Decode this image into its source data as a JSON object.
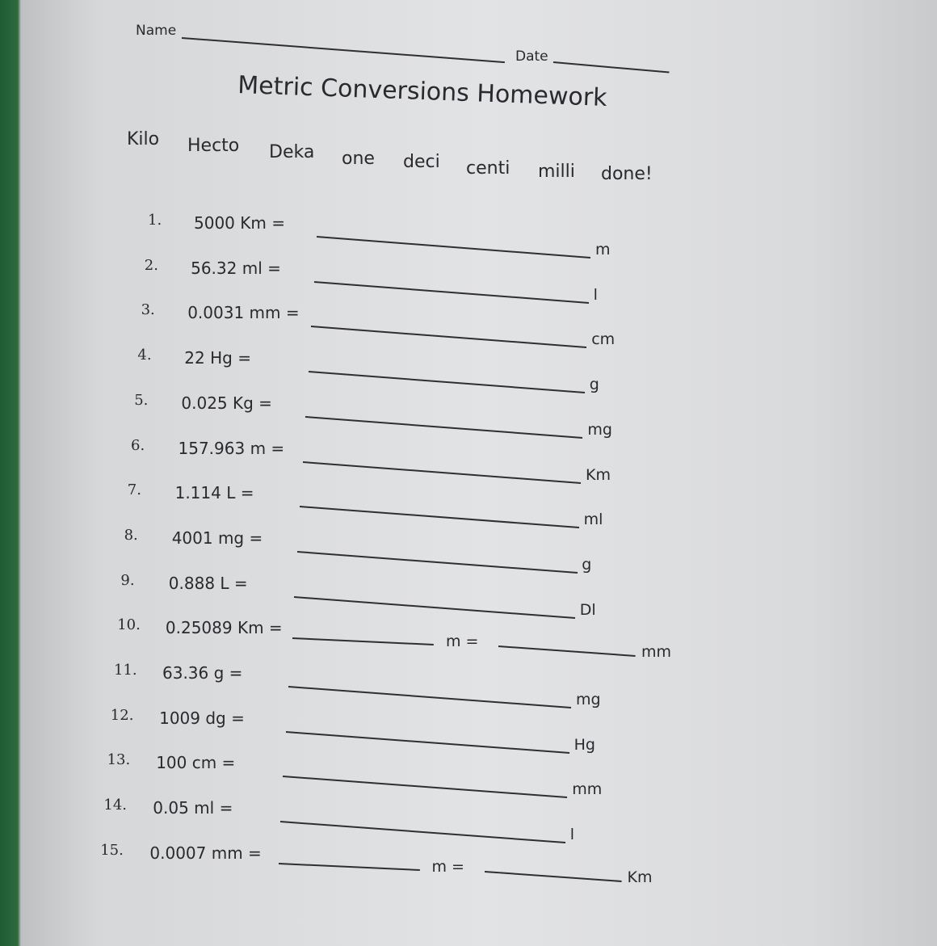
{
  "header": {
    "name_label": "Name",
    "date_label": "Date"
  },
  "title": "Metric Conversions Homework",
  "prefixes": [
    "Kilo",
    "Hecto",
    "Deka",
    "one",
    "deci",
    "centi",
    "milli",
    "done!"
  ],
  "problems": [
    {
      "num": "1.",
      "expr": "5000 Km =",
      "unit": "m"
    },
    {
      "num": "2.",
      "expr": "56.32 ml =",
      "unit": "l"
    },
    {
      "num": "3.",
      "expr": "0.0031 mm =",
      "unit": "cm"
    },
    {
      "num": "4.",
      "expr": "22 Hg =",
      "unit": "g"
    },
    {
      "num": "5.",
      "expr": "0.025 Kg =",
      "unit": "mg"
    },
    {
      "num": "6.",
      "expr": "157.963 m =",
      "unit": "Km"
    },
    {
      "num": "7.",
      "expr": "1.114 L =",
      "unit": "ml"
    },
    {
      "num": "8.",
      "expr": "4001 mg =",
      "unit": "g"
    },
    {
      "num": "9.",
      "expr": "0.888 L =",
      "unit": "Dl"
    },
    {
      "num": "10.",
      "expr": "0.25089 Km =",
      "mid": "m =",
      "unit": "mm"
    },
    {
      "num": "11.",
      "expr": "63.36 g =",
      "unit": "mg"
    },
    {
      "num": "12.",
      "expr": "1009 dg =",
      "unit": "Hg"
    },
    {
      "num": "13.",
      "expr": "100 cm =",
      "unit": "mm"
    },
    {
      "num": "14.",
      "expr": "0.05 ml =",
      "unit": "l"
    },
    {
      "num": "15.",
      "expr": "0.0007 mm =",
      "mid": "m =",
      "unit": "Km"
    }
  ]
}
